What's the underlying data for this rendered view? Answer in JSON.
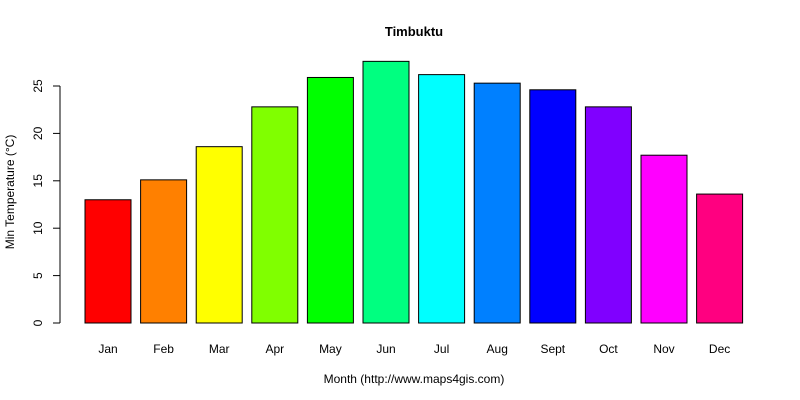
{
  "chart_data": {
    "type": "bar",
    "title": "Timbuktu",
    "xlabel": "Month (http://www.maps4gis.com)",
    "ylabel": "Min Temperature (°C)",
    "categories": [
      "Jan",
      "Feb",
      "Mar",
      "Apr",
      "May",
      "Jun",
      "Jul",
      "Aug",
      "Sept",
      "Oct",
      "Nov",
      "Dec"
    ],
    "values": [
      13.0,
      15.1,
      18.6,
      22.8,
      25.9,
      27.6,
      26.2,
      25.3,
      24.6,
      22.8,
      17.7,
      13.6
    ],
    "colors": [
      "#FF0000",
      "#FF8000",
      "#FFFF00",
      "#80FF00",
      "#00FF00",
      "#00FF80",
      "#00FFFF",
      "#0080FF",
      "#0000FF",
      "#8000FF",
      "#FF00FF",
      "#FF0080"
    ],
    "yticks": [
      0,
      5,
      10,
      15,
      20,
      25
    ],
    "ylim": [
      0,
      27.6
    ],
    "grid": false,
    "legend": false
  }
}
